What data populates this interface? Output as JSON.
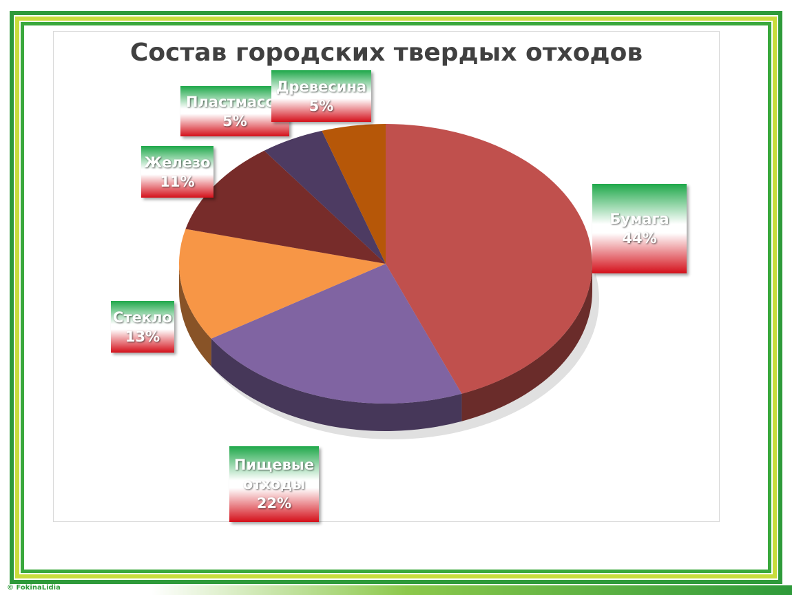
{
  "chart_data": {
    "type": "pie3d",
    "title": "Состав городских твердых отходов",
    "categories": [
      "Бумага",
      "Пищевые отходы",
      "Стекло",
      "Железо",
      "Пластмасса",
      "Древесина"
    ],
    "values": [
      44,
      22,
      13,
      11,
      5,
      5
    ],
    "value_labels": [
      "44%",
      "22%",
      "13%",
      "11%",
      "5%",
      "5%"
    ],
    "colors": [
      "#c0504d",
      "#8064a2",
      "#f79646",
      "#772c2a",
      "#4d3b62",
      "#b65708"
    ]
  },
  "footer": "© FokinaLidia"
}
